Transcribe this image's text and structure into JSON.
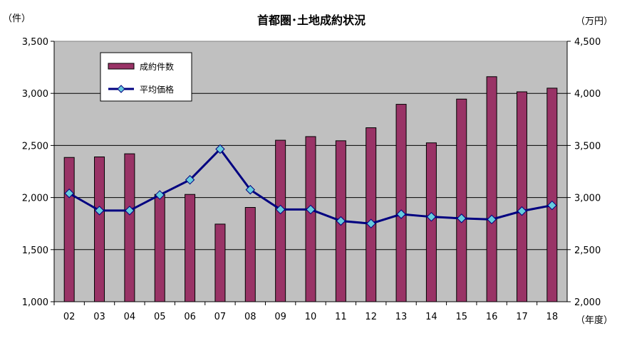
{
  "chart_data": {
    "type": "bar",
    "title": "首都圏･土地成約状況",
    "categories": [
      "02",
      "03",
      "04",
      "05",
      "06",
      "07",
      "08",
      "09",
      "10",
      "11",
      "12",
      "13",
      "14",
      "15",
      "16",
      "17",
      "18"
    ],
    "y_left_label": "（件）",
    "y_right_label": "（万円）",
    "x_unit_label": "（年度）",
    "y_left_lim": [
      1000,
      3500
    ],
    "y_left_ticks": [
      "1,000",
      "1,500",
      "2,000",
      "2,500",
      "3,000",
      "3,500"
    ],
    "y_right_lim": [
      2000,
      4500
    ],
    "y_right_ticks": [
      "2,000",
      "2,500",
      "3,000",
      "3,500",
      "4,000",
      "4,500"
    ],
    "grid": "horizontal",
    "legend_position": "top-left",
    "series": [
      {
        "name": "成約件数",
        "type": "bar",
        "axis": "left",
        "color": "#993366",
        "values": [
          2385,
          2390,
          2420,
          2030,
          2030,
          1745,
          1905,
          2550,
          2585,
          2545,
          2670,
          2895,
          2525,
          2945,
          3160,
          3015,
          3050
        ]
      },
      {
        "name": "平均価格",
        "type": "line",
        "axis": "right",
        "color": "#000080",
        "marker_color": "#66CCDD",
        "values": [
          3040,
          2875,
          2875,
          3025,
          3170,
          3465,
          3075,
          2885,
          2885,
          2775,
          2750,
          2840,
          2815,
          2800,
          2790,
          2870,
          2925
        ]
      }
    ]
  }
}
